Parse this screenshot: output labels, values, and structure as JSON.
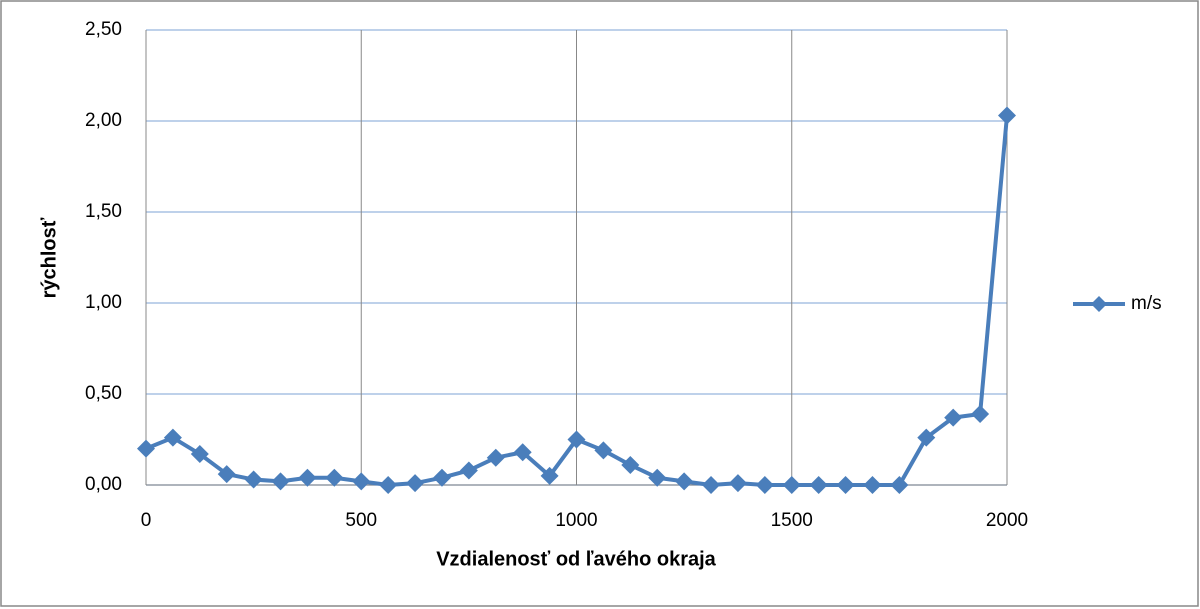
{
  "chart_data": {
    "type": "line",
    "x_label": "Vzdialenosť od ľavého okraja",
    "y_label": "rýchlosť",
    "x": [
      0,
      62.5,
      125,
      187.5,
      250,
      312.5,
      375,
      437.5,
      500,
      562.5,
      625,
      687.5,
      750,
      812.5,
      875,
      937.5,
      1000,
      1062.5,
      1125,
      1187.5,
      1250,
      1312.5,
      1375,
      1437.5,
      1500,
      1562.5,
      1625,
      1687.5,
      1750,
      1812.5,
      1875,
      1937.5,
      2000
    ],
    "series": [
      {
        "name": "m/s",
        "color": "#4a7ebb",
        "values": [
          0.2,
          0.26,
          0.17,
          0.06,
          0.03,
          0.02,
          0.04,
          0.04,
          0.02,
          0.0,
          0.01,
          0.04,
          0.08,
          0.15,
          0.18,
          0.05,
          0.25,
          0.19,
          0.11,
          0.04,
          0.02,
          0.0,
          0.01,
          0.0,
          0.0,
          0.0,
          0.0,
          0.0,
          0.0,
          0.26,
          0.37,
          0.39,
          2.03
        ]
      }
    ],
    "xlim": [
      0,
      2000
    ],
    "xticks": [
      0,
      500,
      1000,
      1500,
      2000
    ],
    "ylim": [
      0,
      2.5
    ],
    "yticks": [
      {
        "value": 0,
        "label": "0,00"
      },
      {
        "value": 0.5,
        "label": "0,50"
      },
      {
        "value": 1,
        "label": "1,00"
      },
      {
        "value": 1.5,
        "label": "1,50"
      },
      {
        "value": 2,
        "label": "2,00"
      },
      {
        "value": 2.5,
        "label": "2,50"
      }
    ],
    "grid": true,
    "legend": "right"
  }
}
